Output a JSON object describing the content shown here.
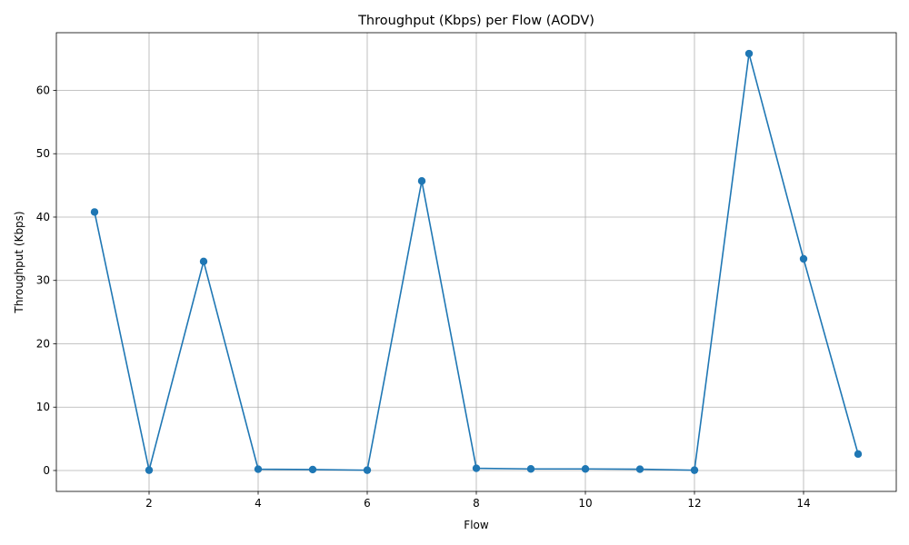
{
  "chart_data": {
    "type": "line",
    "title": "Throughput (Kbps) per Flow (AODV)",
    "xlabel": "Flow",
    "ylabel": "Throughput (Kbps)",
    "xlim": [
      0.3,
      15.7
    ],
    "ylim": [
      -3.3,
      69.1
    ],
    "xticks": [
      2,
      4,
      6,
      8,
      10,
      12,
      14
    ],
    "yticks": [
      0,
      10,
      20,
      30,
      40,
      50,
      60
    ],
    "grid": true,
    "series": [
      {
        "name": "Throughput",
        "color": "#1f77b4",
        "marker": "circle",
        "x": [
          1,
          2,
          3,
          4,
          5,
          6,
          7,
          8,
          9,
          10,
          11,
          12,
          13,
          14,
          15
        ],
        "values": [
          40.8,
          0.05,
          33.0,
          0.2,
          0.15,
          0.05,
          45.7,
          0.35,
          0.25,
          0.25,
          0.2,
          0.05,
          65.8,
          33.4,
          2.6
        ]
      }
    ]
  }
}
